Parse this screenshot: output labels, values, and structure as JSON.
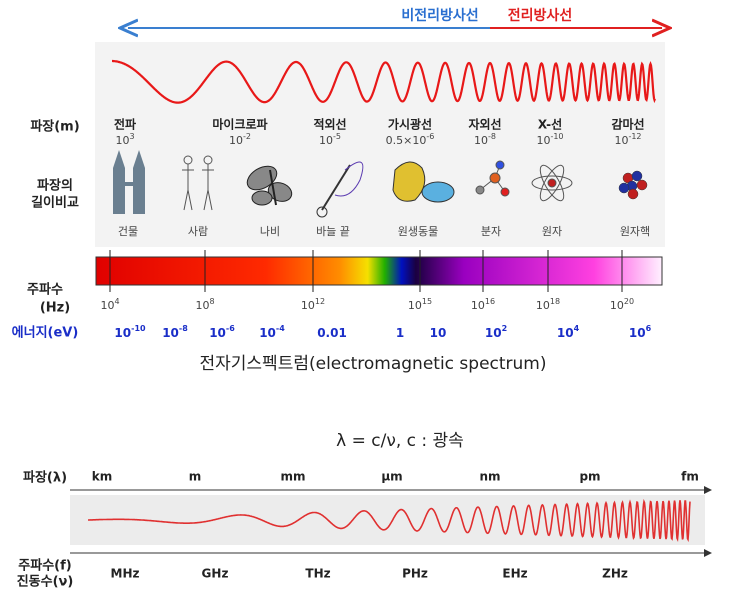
{
  "top": {
    "non_ionizing": "비전리방사선",
    "ionizing": "전리방사선"
  },
  "wavelength_label": "파장(m)",
  "bands": [
    {
      "name": "전파",
      "wavelength": {
        "base": "10",
        "exp": "3"
      }
    },
    {
      "name": "마이크로파",
      "wavelength": {
        "base": "10",
        "exp": "-2"
      }
    },
    {
      "name": "적외선",
      "wavelength": {
        "base": "10",
        "exp": "-5"
      }
    },
    {
      "name": "가시광선",
      "wavelength": {
        "base": "0.5×10",
        "exp": "-6"
      }
    },
    {
      "name": "자외선",
      "wavelength": {
        "base": "10",
        "exp": "-8"
      }
    },
    {
      "name": "X-선",
      "wavelength": {
        "base": "10",
        "exp": "-10"
      }
    },
    {
      "name": "감마선",
      "wavelength": {
        "base": "10",
        "exp": "-12"
      }
    }
  ],
  "compare_label": [
    "파장의",
    "길이비교"
  ],
  "objects": [
    "건물",
    "사람",
    "나비",
    "바늘 끝",
    "원생동물",
    "분자",
    "원자",
    "원자핵"
  ],
  "frequency_label": [
    "주파수",
    "(Hz)"
  ],
  "frequencies": [
    {
      "base": "10",
      "exp": "4"
    },
    {
      "base": "10",
      "exp": "8"
    },
    {
      "base": "10",
      "exp": "12"
    },
    {
      "base": "10",
      "exp": "15"
    },
    {
      "base": "10",
      "exp": "16"
    },
    {
      "base": "10",
      "exp": "18"
    },
    {
      "base": "10",
      "exp": "20"
    }
  ],
  "energy_label": "에너지(eV)",
  "energies": [
    {
      "base": "10",
      "exp": "-10"
    },
    {
      "base": "10",
      "exp": "-8"
    },
    {
      "base": "10",
      "exp": "-6"
    },
    {
      "base": "10",
      "exp": "-4"
    },
    {
      "base": "0.01",
      "exp": ""
    },
    {
      "base": "1",
      "exp": ""
    },
    {
      "base": "10",
      "exp": ""
    },
    {
      "base": "10",
      "exp": "2"
    },
    {
      "base": "10",
      "exp": "4"
    },
    {
      "base": "10",
      "exp": "6"
    }
  ],
  "spectrum_title": "전자기스펙트럼(electromagnetic spectrum)",
  "formula": "λ = c/ν, c : 광속",
  "bottom": {
    "wavelength_label": "파장(λ)",
    "wavelength_units": [
      "km",
      "m",
      "mm",
      "μm",
      "nm",
      "pm",
      "fm"
    ],
    "frequency_label": [
      "주파수(f)",
      "진동수(ν)"
    ],
    "frequency_units": [
      "MHz",
      "GHz",
      "THz",
      "PHz",
      "EHz",
      "ZHz"
    ]
  }
}
